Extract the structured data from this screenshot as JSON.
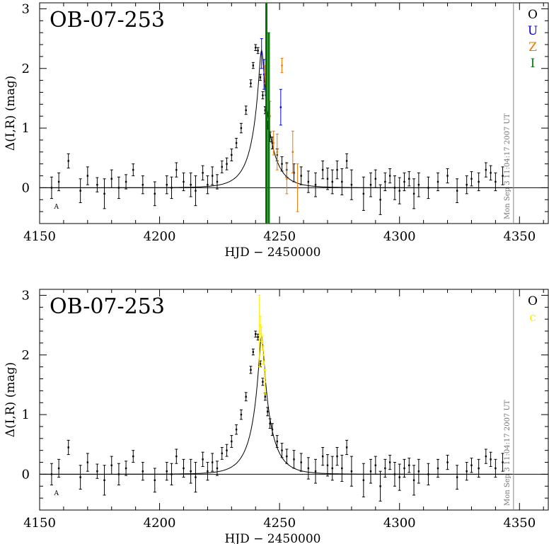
{
  "chart_data": [
    {
      "type": "scatter",
      "title": "OB-07-253",
      "xlabel": "HJD − 2450000",
      "ylabel": "Δ(I,R) (mag)",
      "xlim": [
        4150,
        4362
      ],
      "ylim": [
        -0.6,
        3.1
      ],
      "xticks": [
        4150,
        4200,
        4250,
        4300,
        4350
      ],
      "yticks": [
        0,
        1,
        2,
        3
      ],
      "timestamp": "Mon Sep  3 11:04:17 2007 UT",
      "small_label": "A",
      "model": {
        "t0": 4242.5,
        "u0": 0.12,
        "tE": 8.0
      },
      "legend": [
        {
          "label": "O",
          "color": "#000000"
        },
        {
          "label": "U",
          "color": "#0000dd"
        },
        {
          "label": "Z",
          "color": "#ee7700"
        },
        {
          "label": "I",
          "color": "#007700"
        }
      ],
      "series": [
        {
          "name": "O",
          "color": "#000000",
          "x": [
            4155,
            4158,
            4162,
            4167,
            4170,
            4174,
            4177,
            4180,
            4183,
            4186,
            4189,
            4193,
            4198,
            4203,
            4205,
            4207,
            4210,
            4213,
            4215,
            4218,
            4220,
            4222,
            4224,
            4226,
            4228,
            4230,
            4232,
            4234,
            4236,
            4238,
            4239,
            4240,
            4241,
            4242,
            4243,
            4244,
            4245,
            4246,
            4247,
            4249,
            4251,
            4253,
            4256,
            4259,
            4262,
            4265,
            4268,
            4270,
            4272,
            4274,
            4276,
            4278,
            4280,
            4285,
            4288,
            4290,
            4292,
            4294,
            4296,
            4298,
            4300,
            4302,
            4304,
            4306,
            4308,
            4312,
            4316,
            4320,
            4324,
            4328,
            4330,
            4333,
            4336,
            4338,
            4340,
            4343
          ],
          "y": [
            0.0,
            0.1,
            0.45,
            -0.05,
            0.2,
            0.05,
            -0.1,
            0.15,
            0.0,
            0.1,
            0.3,
            0.05,
            -0.1,
            0.05,
            0.0,
            0.3,
            0.1,
            0.05,
            -0.05,
            0.25,
            0.05,
            0.2,
            0.1,
            0.35,
            0.4,
            0.55,
            0.75,
            1.0,
            1.3,
            1.75,
            2.05,
            2.35,
            2.3,
            1.85,
            1.55,
            1.3,
            1.05,
            0.85,
            0.75,
            0.55,
            0.4,
            0.3,
            0.25,
            0.2,
            0.1,
            0.05,
            0.3,
            0.15,
            0.1,
            0.3,
            0.1,
            0.45,
            0.05,
            -0.1,
            0.05,
            0.15,
            -0.2,
            0.1,
            0.2,
            0.0,
            -0.05,
            0.1,
            0.15,
            -0.1,
            0.05,
            0.0,
            0.1,
            0.2,
            -0.05,
            0.05,
            0.15,
            0.1,
            0.3,
            0.25,
            0.1,
            0.2
          ],
          "err": [
            0.18,
            0.15,
            0.12,
            0.2,
            0.15,
            0.12,
            0.25,
            0.15,
            0.18,
            0.12,
            0.1,
            0.15,
            0.2,
            0.15,
            0.18,
            0.12,
            0.15,
            0.2,
            0.25,
            0.12,
            0.15,
            0.15,
            0.12,
            0.1,
            0.1,
            0.1,
            0.08,
            0.08,
            0.07,
            0.06,
            0.05,
            0.05,
            0.05,
            0.05,
            0.06,
            0.06,
            0.07,
            0.08,
            0.1,
            0.1,
            0.12,
            0.12,
            0.15,
            0.15,
            0.18,
            0.2,
            0.15,
            0.18,
            0.2,
            0.15,
            0.22,
            0.12,
            0.25,
            0.28,
            0.2,
            0.15,
            0.25,
            0.15,
            0.12,
            0.2,
            0.22,
            0.15,
            0.12,
            0.25,
            0.2,
            0.18,
            0.15,
            0.12,
            0.2,
            0.15,
            0.12,
            0.15,
            0.12,
            0.12,
            0.15,
            0.15
          ]
        },
        {
          "name": "U",
          "color": "#0000dd",
          "x": [
            4242.5,
            4243.5,
            4244.2,
            4250.5
          ],
          "y": [
            2.25,
            1.9,
            1.55,
            1.35
          ],
          "err": [
            0.25,
            0.25,
            0.2,
            0.3
          ]
        },
        {
          "name": "Z",
          "color": "#ee7700",
          "x": [
            4244.0,
            4246.0,
            4247.5,
            4249.0,
            4251.0,
            4253.0,
            4255.5,
            4257.5
          ],
          "y": [
            1.9,
            1.2,
            0.75,
            0.6,
            2.05,
            0.15,
            0.6,
            0.0
          ],
          "err": [
            0.15,
            0.25,
            0.2,
            0.3,
            0.12,
            0.25,
            0.35,
            0.4
          ]
        },
        {
          "name": "I",
          "color": "#007700",
          "x": [
            4244.5,
            4245.5
          ],
          "y": [
            1.35,
            1.0
          ],
          "err": [
            1.95,
            1.6
          ]
        }
      ]
    },
    {
      "type": "scatter",
      "title": "OB-07-253",
      "xlabel": "HJD − 2450000",
      "ylabel": "Δ(I,R) (mag)",
      "xlim": [
        4150,
        4362
      ],
      "ylim": [
        -0.6,
        3.1
      ],
      "xticks": [
        4150,
        4200,
        4250,
        4300,
        4350
      ],
      "yticks": [
        0,
        1,
        2,
        3
      ],
      "timestamp": "Mon Sep  3 11:04:17 2007 UT",
      "small_label": "A",
      "model": {
        "t0": 4242.5,
        "u0": 0.12,
        "tE": 8.0
      },
      "legend": [
        {
          "label": "O",
          "color": "#000000"
        },
        {
          "label": "c",
          "color": "#ffee00"
        }
      ],
      "series": [
        {
          "name": "O",
          "color": "#000000",
          "x": [
            4155,
            4158,
            4162,
            4167,
            4170,
            4174,
            4177,
            4180,
            4183,
            4186,
            4189,
            4193,
            4198,
            4203,
            4205,
            4207,
            4210,
            4213,
            4215,
            4218,
            4220,
            4222,
            4224,
            4226,
            4228,
            4230,
            4232,
            4234,
            4236,
            4238,
            4239,
            4240,
            4241,
            4242,
            4243,
            4244,
            4245,
            4246,
            4247,
            4249,
            4251,
            4253,
            4256,
            4259,
            4262,
            4265,
            4268,
            4270,
            4272,
            4274,
            4276,
            4278,
            4280,
            4285,
            4288,
            4290,
            4292,
            4294,
            4296,
            4298,
            4300,
            4302,
            4304,
            4306,
            4308,
            4312,
            4316,
            4320,
            4324,
            4328,
            4330,
            4333,
            4336,
            4338,
            4340,
            4343
          ],
          "y": [
            0.0,
            0.1,
            0.45,
            -0.05,
            0.2,
            0.05,
            -0.1,
            0.15,
            0.0,
            0.1,
            0.3,
            0.05,
            -0.1,
            0.05,
            0.0,
            0.3,
            0.1,
            0.05,
            -0.05,
            0.25,
            0.05,
            0.2,
            0.1,
            0.35,
            0.4,
            0.55,
            0.75,
            1.0,
            1.3,
            1.75,
            2.05,
            2.35,
            2.3,
            1.85,
            1.55,
            1.3,
            1.05,
            0.85,
            0.75,
            0.55,
            0.4,
            0.3,
            0.25,
            0.2,
            0.1,
            0.05,
            0.3,
            0.15,
            0.1,
            0.3,
            0.1,
            0.45,
            0.05,
            -0.1,
            0.05,
            0.15,
            -0.2,
            0.1,
            0.2,
            0.0,
            -0.05,
            0.1,
            0.15,
            -0.1,
            0.05,
            0.0,
            0.1,
            0.2,
            -0.05,
            0.05,
            0.15,
            0.1,
            0.3,
            0.25,
            0.1,
            0.2
          ],
          "err": [
            0.18,
            0.15,
            0.12,
            0.2,
            0.15,
            0.12,
            0.25,
            0.15,
            0.18,
            0.12,
            0.1,
            0.15,
            0.2,
            0.15,
            0.18,
            0.12,
            0.15,
            0.2,
            0.25,
            0.12,
            0.15,
            0.15,
            0.12,
            0.1,
            0.1,
            0.1,
            0.08,
            0.08,
            0.07,
            0.06,
            0.05,
            0.05,
            0.05,
            0.05,
            0.06,
            0.06,
            0.07,
            0.08,
            0.1,
            0.1,
            0.12,
            0.12,
            0.15,
            0.15,
            0.18,
            0.2,
            0.15,
            0.18,
            0.2,
            0.15,
            0.22,
            0.12,
            0.25,
            0.28,
            0.2,
            0.15,
            0.25,
            0.15,
            0.12,
            0.2,
            0.22,
            0.15,
            0.12,
            0.25,
            0.2,
            0.18,
            0.15,
            0.12,
            0.2,
            0.15,
            0.12,
            0.15,
            0.12,
            0.12,
            0.15,
            0.15
          ]
        },
        {
          "name": "c",
          "color": "#ffee00",
          "x": [
            4241.6,
            4242.0,
            4242.4,
            4242.8,
            4243.2,
            4243.6,
            4244.0
          ],
          "y": [
            2.4,
            2.5,
            2.35,
            2.2,
            2.0,
            1.75,
            1.55
          ],
          "err": [
            0.6,
            0.15,
            0.12,
            0.12,
            0.15,
            0.15,
            0.2
          ]
        }
      ]
    }
  ]
}
